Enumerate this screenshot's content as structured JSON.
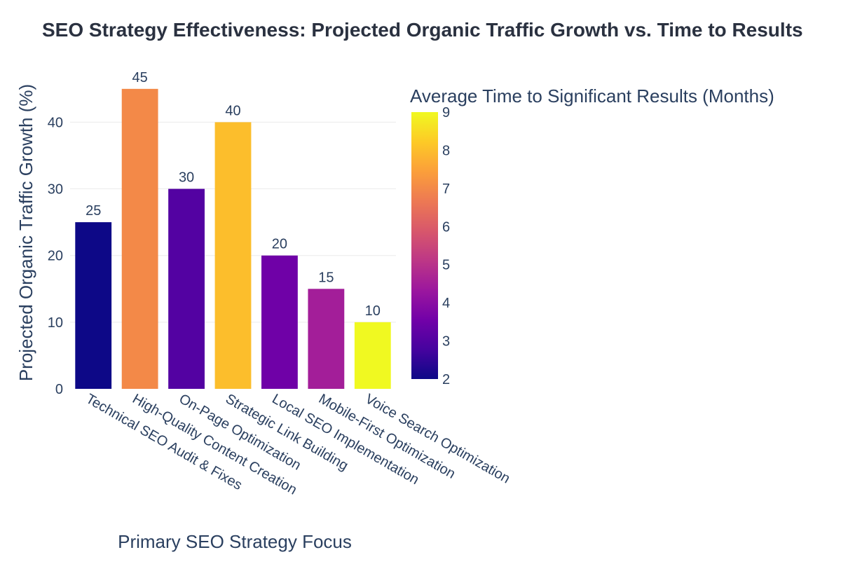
{
  "chart_data": {
    "type": "bar",
    "title": "SEO Strategy Effectiveness: Projected Organic Traffic Growth vs. Time to Results",
    "xlabel": "Primary SEO Strategy Focus",
    "ylabel": "Projected Organic Traffic Growth (%)",
    "categories": [
      "Technical SEO Audit & Fixes",
      "High-Quality Content Creation",
      "On-Page Optimization",
      "Strategic Link Building",
      "Local SEO Implementation",
      "Mobile-First Optimization",
      "Voice Search Optimization"
    ],
    "values": [
      25,
      45,
      30,
      40,
      20,
      15,
      10
    ],
    "color_values": [
      2,
      7,
      3,
      8,
      3.5,
      4.5,
      9
    ],
    "ylim": [
      0,
      47.4
    ],
    "yticks": [
      0,
      10,
      20,
      30,
      40
    ],
    "grid": true,
    "colorbar": {
      "title": "Average Time to Significant Results (Months)",
      "range": [
        2,
        9
      ],
      "ticks": [
        2,
        3,
        4,
        5,
        6,
        7,
        8,
        9
      ],
      "colorscale": [
        "#0d0887",
        "#46039f",
        "#7201a8",
        "#9c179e",
        "#bd3786",
        "#d8576b",
        "#ed7953",
        "#fb9f3a",
        "#fdca26",
        "#f0f921"
      ]
    }
  }
}
